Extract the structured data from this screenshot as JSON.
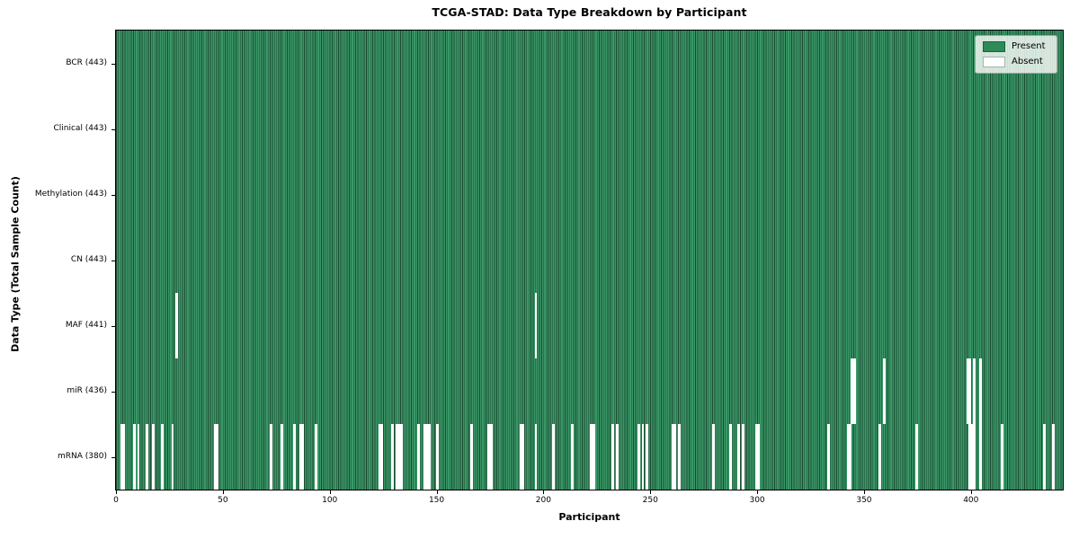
{
  "title": "TCGA-STAD: Data Type Breakdown by Participant",
  "xlabel": "Participant",
  "ylabel": "Data Type (Total Sample Count)",
  "legend": {
    "present_label": "Present",
    "absent_label": "Absent"
  },
  "colors": {
    "present_fill": "#3a9767",
    "present_edge": "#1b4a30",
    "present_legend": "#2e8b57",
    "absent": "#ffffff",
    "frame": "#000000"
  },
  "chart_data": {
    "type": "heatmap",
    "title": "TCGA-STAD: Data Type Breakdown by Participant",
    "xlabel": "Participant",
    "ylabel": "Data Type (Total Sample Count)",
    "x_ticks": [
      0,
      50,
      100,
      150,
      200,
      250,
      300,
      350,
      400
    ],
    "x_range": [
      0,
      443
    ],
    "n_participants": 443,
    "legend_entries": [
      "Present",
      "Absent"
    ],
    "legend_position": "upper right",
    "grid": false,
    "rows": [
      {
        "data_type": "BCR",
        "label": "BCR (443)",
        "present_count": 443,
        "absent_indices": []
      },
      {
        "data_type": "Clinical",
        "label": "Clinical (443)",
        "present_count": 443,
        "absent_indices": []
      },
      {
        "data_type": "Methylation",
        "label": "Methylation (443)",
        "present_count": 443,
        "absent_indices": []
      },
      {
        "data_type": "CN",
        "label": "CN (443)",
        "present_count": 443,
        "absent_indices": []
      },
      {
        "data_type": "MAF",
        "label": "MAF (441)",
        "present_count": 441,
        "absent_indices": [
          28,
          196
        ]
      },
      {
        "data_type": "miR",
        "label": "miR (436)",
        "present_count": 436,
        "absent_indices": [
          344,
          345,
          359,
          398,
          399,
          401,
          404
        ]
      },
      {
        "data_type": "mRNA",
        "label": "mRNA (380)",
        "present_count": 380,
        "absent_indices": [
          2,
          3,
          8,
          10,
          14,
          17,
          21,
          26,
          46,
          47,
          72,
          77,
          83,
          86,
          87,
          93,
          123,
          124,
          129,
          131,
          132,
          133,
          141,
          144,
          145,
          146,
          150,
          166,
          174,
          175,
          189,
          190,
          196,
          204,
          213,
          222,
          223,
          232,
          234,
          244,
          246,
          248,
          260,
          261,
          263,
          279,
          287,
          291,
          293,
          299,
          300,
          333,
          342,
          343,
          357,
          374,
          399,
          400,
          401,
          404,
          414,
          434,
          438
        ]
      }
    ]
  }
}
